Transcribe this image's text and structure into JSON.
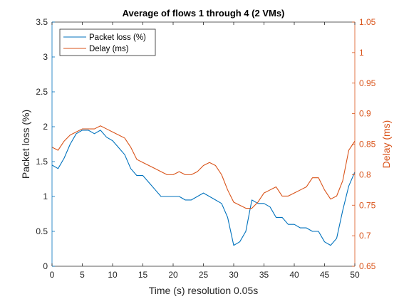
{
  "chart_data": {
    "type": "line",
    "title": "Average of flows 1 through 4 (2 VMs)",
    "xlabel": "Time (s) resolution 0.05s",
    "xlim": [
      0,
      50
    ],
    "xticks": [
      0,
      5,
      10,
      15,
      20,
      25,
      30,
      35,
      40,
      45,
      50
    ],
    "left_axis": {
      "label": "Packet loss (%)",
      "ylim": [
        0,
        3.5
      ],
      "ticks": [
        "0",
        "0.5",
        "1",
        "1.5",
        "2",
        "2.5",
        "3",
        "3.5"
      ],
      "color": "#0072BD"
    },
    "right_axis": {
      "label": "Delay (ms)",
      "ylim": [
        0.65,
        1.05
      ],
      "ticks": [
        "0.65",
        "0.7",
        "0.75",
        "0.8",
        "0.85",
        "0.9",
        "0.95",
        "1",
        "1.05"
      ],
      "color": "#D95319"
    },
    "legend_position": "top-left",
    "grid": false,
    "series": [
      {
        "name": "Packet loss (%)",
        "axis": "left",
        "color": "#0072BD",
        "x": [
          0,
          1,
          2,
          3,
          4,
          5,
          6,
          7,
          8,
          9,
          10,
          11,
          12,
          13,
          14,
          15,
          16,
          17,
          18,
          19,
          20,
          21,
          22,
          23,
          24,
          25,
          26,
          27,
          28,
          29,
          30,
          31,
          32,
          33,
          34,
          35,
          36,
          37,
          38,
          39,
          40,
          41,
          42,
          43,
          44,
          45,
          46,
          47,
          48,
          49,
          50
        ],
        "y": [
          1.45,
          1.4,
          1.55,
          1.75,
          1.9,
          1.95,
          1.95,
          1.9,
          1.95,
          1.85,
          1.8,
          1.7,
          1.6,
          1.4,
          1.3,
          1.3,
          1.2,
          1.1,
          1.0,
          1.0,
          1.0,
          1.0,
          0.95,
          0.95,
          1.0,
          1.05,
          1.0,
          0.95,
          0.9,
          0.7,
          0.3,
          0.35,
          0.5,
          0.95,
          0.9,
          0.9,
          0.85,
          0.7,
          0.7,
          0.6,
          0.6,
          0.55,
          0.55,
          0.5,
          0.5,
          0.35,
          0.3,
          0.4,
          0.8,
          1.15,
          1.35
        ]
      },
      {
        "name": "Delay (ms)",
        "axis": "right",
        "color": "#D95319",
        "x": [
          0,
          1,
          2,
          3,
          4,
          5,
          6,
          7,
          8,
          9,
          10,
          11,
          12,
          13,
          14,
          15,
          16,
          17,
          18,
          19,
          20,
          21,
          22,
          23,
          24,
          25,
          26,
          27,
          28,
          29,
          30,
          31,
          32,
          33,
          34,
          35,
          36,
          37,
          38,
          39,
          40,
          41,
          42,
          43,
          44,
          45,
          46,
          47,
          48,
          49,
          50
        ],
        "y": [
          0.845,
          0.84,
          0.855,
          0.865,
          0.87,
          0.875,
          0.875,
          0.875,
          0.88,
          0.875,
          0.87,
          0.865,
          0.86,
          0.845,
          0.825,
          0.82,
          0.815,
          0.81,
          0.805,
          0.8,
          0.8,
          0.805,
          0.8,
          0.8,
          0.805,
          0.815,
          0.82,
          0.815,
          0.8,
          0.775,
          0.755,
          0.75,
          0.745,
          0.745,
          0.755,
          0.77,
          0.775,
          0.78,
          0.765,
          0.765,
          0.77,
          0.775,
          0.78,
          0.795,
          0.795,
          0.775,
          0.76,
          0.765,
          0.79,
          0.84,
          0.855
        ]
      }
    ]
  }
}
